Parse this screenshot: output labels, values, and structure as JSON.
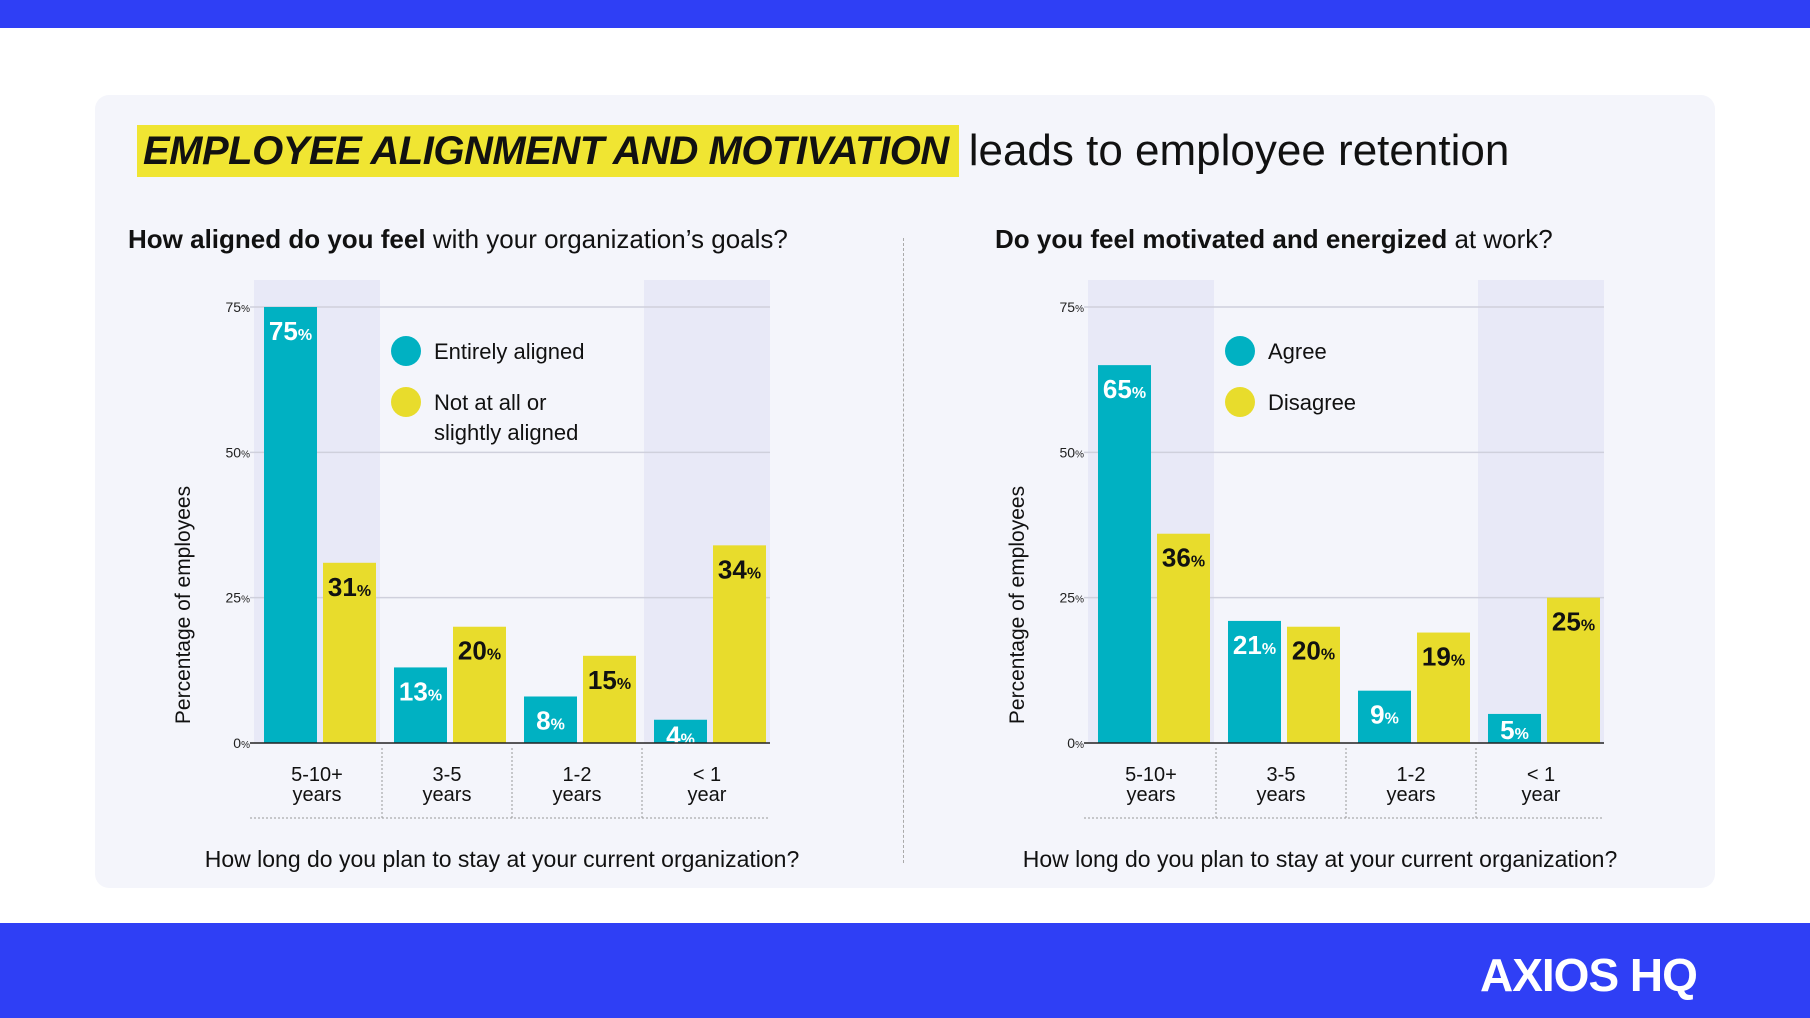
{
  "headline": {
    "highlight": "EMPLOYEE ALIGNMENT AND MOTIVATION",
    "rest": "leads to employee retention"
  },
  "brand": {
    "logo": "AXIOS HQ",
    "blue": "#2f3ff5",
    "highlight": "#f0e532",
    "teal": "#00b1c2",
    "yellow": "#e8dc2c",
    "band": "#e8e9f7"
  },
  "chart_data": [
    {
      "type": "bar",
      "title_bold": "How aligned do you feel",
      "title_rest": "with your organization’s goals?",
      "xlabel": "How long do you plan to stay at your current organization?",
      "ylabel": "Percentage of employees",
      "ylim": [
        0,
        75
      ],
      "yticks": [
        "0%",
        "25%",
        "50%",
        "75%"
      ],
      "categories": [
        "5-10+|years",
        "3-5|years",
        "1-2|years",
        "< 1|year"
      ],
      "legend": "top-center",
      "series": [
        {
          "name": "Entirely aligned",
          "values": [
            75,
            13,
            8,
            4
          ]
        },
        {
          "name": "Not at all or slightly aligned",
          "values": [
            31,
            20,
            15,
            34
          ]
        }
      ]
    },
    {
      "type": "bar",
      "title_bold": "Do you feel motivated and energized",
      "title_rest": "at work?",
      "xlabel": "How long do you plan to stay at your current organization?",
      "ylabel": "Percentage of employees",
      "ylim": [
        0,
        75
      ],
      "yticks": [
        "0%",
        "25%",
        "50%",
        "75%"
      ],
      "categories": [
        "5-10+|years",
        "3-5|years",
        "1-2|years",
        "< 1|year"
      ],
      "legend": "top-center",
      "series": [
        {
          "name": "Agree",
          "values": [
            65,
            21,
            9,
            5
          ]
        },
        {
          "name": "Disagree",
          "values": [
            36,
            20,
            19,
            25
          ]
        }
      ]
    }
  ]
}
